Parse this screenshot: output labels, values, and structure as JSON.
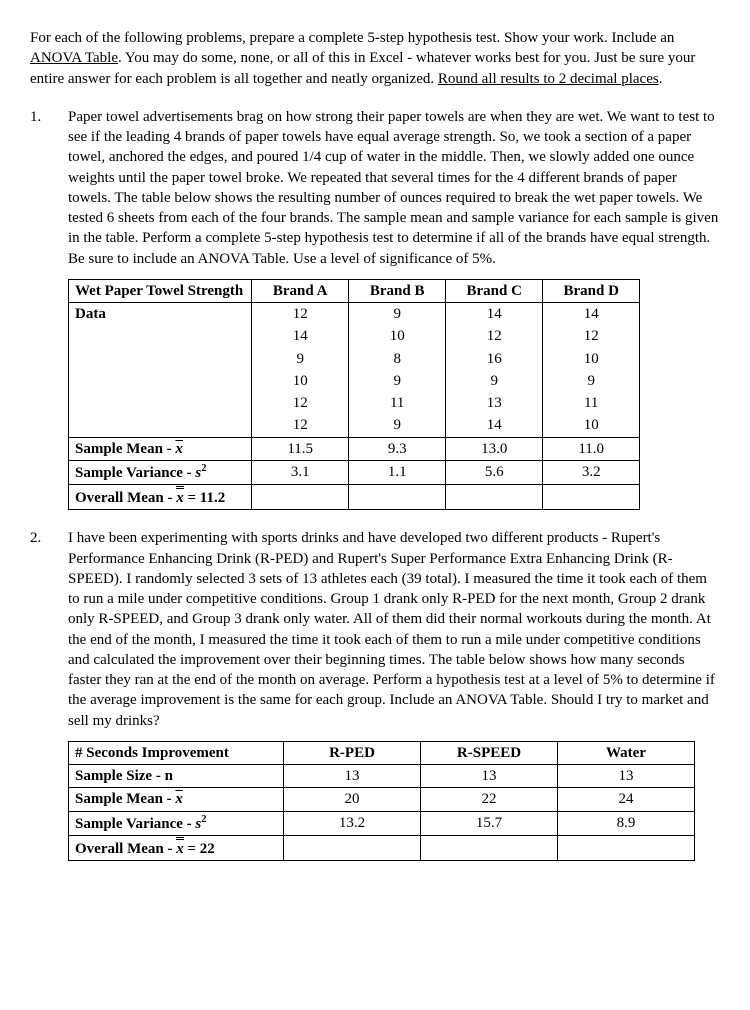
{
  "intro": {
    "p1a": "For each of the following problems, prepare a complete 5-step hypothesis test.  Show your work.  Include an ",
    "p1u": "ANOVA Table",
    "p1b": ". You may do some, none, or all of this in Excel - whatever works best for you.  Just be sure your entire answer for each problem is all together and neatly organized.  ",
    "p1u2": "Round all results to 2 decimal places",
    "p1c": "."
  },
  "p1": {
    "num": "1.",
    "text": "Paper towel advertisements brag on how strong their paper towels are when they are wet.  We want to test to see if the leading 4 brands of paper towels have equal average strength.  So, we took a section of a paper towel, anchored the edges, and poured 1/4 cup of water in the middle.  Then, we slowly added one ounce weights until the paper towel broke.  We repeated that several times for the 4 different brands of paper towels.  The table below shows the resulting number of ounces required to break the wet paper towels.  We tested 6 sheets from each of the four brands.  The sample mean and sample variance for each sample is given in the table.  Perform a complete 5-step hypothesis test to determine if all of the brands have equal strength.  Be sure to include an ANOVA Table.  Use a level of significance of 5%.",
    "table": {
      "header": [
        "Wet Paper Towel Strength",
        "Brand A",
        "Brand B",
        "Brand C",
        "Brand D"
      ],
      "dataLabel": "Data",
      "rows": [
        [
          "12",
          "9",
          "14",
          "14"
        ],
        [
          "14",
          "10",
          "12",
          "12"
        ],
        [
          "9",
          "8",
          "16",
          "10"
        ],
        [
          "10",
          "9",
          "9",
          "9"
        ],
        [
          "12",
          "11",
          "13",
          "11"
        ],
        [
          "12",
          "9",
          "14",
          "10"
        ]
      ],
      "meanLabelA": "Sample Mean - ",
      "meanSym": "x̄",
      "meanVals": [
        "11.5",
        "9.3",
        "13.0",
        "11.0"
      ],
      "varLabelA": "Sample Variance - ",
      "varSym": "s",
      "varVals": [
        "3.1",
        "1.1",
        "5.6",
        "3.2"
      ],
      "overallA": "Overall Mean - ",
      "overallSym": "x̄",
      "overallVal": " = 11.2"
    }
  },
  "p2": {
    "num": "2.",
    "text": "I have been experimenting with sports drinks and have developed two different products - Rupert's Performance Enhancing Drink (R-PED) and Rupert's Super Performance Extra Enhancing Drink (R-SPEED).  I randomly selected 3 sets of 13 athletes each (39 total).  I measured the time it took each of them to run a mile under competitive conditions.  Group 1 drank only R-PED for the next month, Group 2 drank only R-SPEED, and Group 3 drank only water.  All of them did their normal workouts during the month.  At the end of the month, I measured the time it took each of them to run a mile under competitive conditions and calculated the improvement over their beginning times.  The table below shows how many seconds faster they ran at the end of the month on average.  Perform a hypothesis test at a level of 5% to determine if the average improvement is the same for each group.  Include an ANOVA Table.  Should I try to market and sell my drinks?",
    "table": {
      "header": [
        "# Seconds Improvement",
        "R-PED",
        "R-SPEED",
        "Water"
      ],
      "sizeLabel": "Sample Size - n",
      "sizeVals": [
        "13",
        "13",
        "13"
      ],
      "meanLabelA": "Sample Mean - ",
      "meanSym": "x̄",
      "meanVals": [
        "20",
        "22",
        "24"
      ],
      "varLabelA": "Sample Variance - ",
      "varSym": "s",
      "varVals": [
        "13.2",
        "15.7",
        "8.9"
      ],
      "overallA": "Overall Mean - ",
      "overallSym": "x̄",
      "overallVal": " = 22"
    }
  }
}
